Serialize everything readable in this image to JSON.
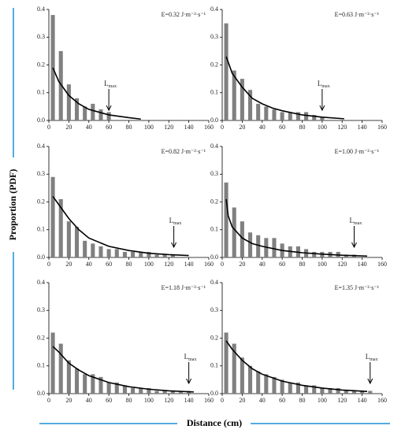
{
  "figure": {
    "ylabel": "Proportion (PDF)",
    "xlabel": "Distance (cm)"
  },
  "chart_data": [
    {
      "type": "bar",
      "annotation": "E=0.32 J·m⁻²·s⁻¹",
      "color": "#808080",
      "x": [
        4,
        12,
        20,
        28,
        36,
        44,
        52,
        60
      ],
      "values": [
        0.38,
        0.25,
        0.13,
        0.08,
        0.05,
        0.06,
        0.04,
        0.03
      ],
      "curve": {
        "type": "line",
        "color": "#000000",
        "x": [
          4,
          10,
          20,
          30,
          40,
          50,
          60,
          70,
          80,
          92
        ],
        "values": [
          0.19,
          0.14,
          0.09,
          0.06,
          0.04,
          0.03,
          0.02,
          0.015,
          0.01,
          0.005
        ]
      },
      "lmax": {
        "text": "L",
        "subscript": "max",
        "x": 60
      },
      "xlim": [
        0,
        160
      ],
      "ylim": [
        0,
        0.4
      ],
      "xticks": [
        0,
        20,
        40,
        60,
        80,
        100,
        120,
        140,
        160
      ],
      "yticks": [
        {
          "value": 0,
          "label": "0.0"
        },
        0.1,
        0.2,
        0.3,
        0.4
      ]
    },
    {
      "type": "bar",
      "annotation": "E=0.63 J·m⁻²·s⁻¹",
      "color": "#808080",
      "x": [
        4,
        12,
        20,
        28,
        36,
        44,
        52,
        60,
        68,
        76,
        84,
        92,
        100
      ],
      "values": [
        0.35,
        0.18,
        0.15,
        0.11,
        0.06,
        0.05,
        0.04,
        0.03,
        0.03,
        0.03,
        0.03,
        0.02,
        0.01
      ],
      "curve": {
        "type": "line",
        "color": "#000000",
        "x": [
          4,
          10,
          20,
          30,
          40,
          50,
          60,
          80,
          100,
          122
        ],
        "values": [
          0.23,
          0.17,
          0.12,
          0.08,
          0.06,
          0.045,
          0.035,
          0.02,
          0.012,
          0.006
        ]
      },
      "lmax": {
        "text": "L",
        "subscript": "max",
        "x": 100
      },
      "xlim": [
        0,
        160
      ],
      "ylim": [
        0,
        0.4
      ],
      "xticks": [
        0,
        20,
        40,
        60,
        80,
        100,
        120,
        140,
        160
      ],
      "yticks": [
        {
          "value": 0,
          "label": "0.0"
        },
        0.1,
        0.2,
        0.3,
        0.4
      ]
    },
    {
      "type": "bar",
      "annotation": "E=0.82 J·m⁻²·s⁻¹",
      "color": "#808080",
      "x": [
        4,
        12,
        20,
        28,
        36,
        44,
        52,
        60,
        68,
        76,
        84,
        92,
        100,
        108,
        116,
        124
      ],
      "values": [
        0.29,
        0.21,
        0.13,
        0.11,
        0.06,
        0.05,
        0.04,
        0.03,
        0.03,
        0.02,
        0.02,
        0.02,
        0.02,
        0.01,
        0.01,
        0.01
      ],
      "curve": {
        "type": "line",
        "color": "#000000",
        "x": [
          4,
          10,
          20,
          30,
          40,
          60,
          80,
          100,
          120,
          140
        ],
        "values": [
          0.22,
          0.19,
          0.14,
          0.1,
          0.07,
          0.04,
          0.025,
          0.015,
          0.01,
          0.007
        ]
      },
      "lmax": {
        "text": "L",
        "subscript": "max",
        "x": 125
      },
      "xlim": [
        0,
        160
      ],
      "ylim": [
        0,
        0.4
      ],
      "xticks": [
        0,
        20,
        40,
        60,
        80,
        100,
        120,
        140,
        160
      ],
      "yticks": [
        {
          "value": 0,
          "label": "0.0"
        },
        0.1,
        0.2,
        0.3,
        0.4
      ]
    },
    {
      "type": "bar",
      "annotation": "E=1.00 J·m⁻²·s⁻¹",
      "color": "#808080",
      "x": [
        4,
        12,
        20,
        28,
        36,
        44,
        52,
        60,
        68,
        76,
        84,
        92,
        100,
        108,
        116,
        124,
        132
      ],
      "values": [
        0.27,
        0.18,
        0.13,
        0.09,
        0.08,
        0.07,
        0.07,
        0.05,
        0.04,
        0.04,
        0.03,
        0.02,
        0.02,
        0.02,
        0.02,
        0.01,
        0.01
      ],
      "curve": {
        "type": "line",
        "color": "#000000",
        "x": [
          4,
          6,
          10,
          20,
          30,
          40,
          60,
          80,
          100,
          120,
          145
        ],
        "values": [
          0.21,
          0.15,
          0.11,
          0.07,
          0.05,
          0.04,
          0.025,
          0.017,
          0.012,
          0.008,
          0.005
        ]
      },
      "lmax": {
        "text": "L",
        "subscript": "max",
        "x": 132
      },
      "xlim": [
        0,
        160
      ],
      "ylim": [
        0,
        0.4
      ],
      "xticks": [
        0,
        20,
        40,
        60,
        80,
        100,
        120,
        140,
        160
      ],
      "yticks": [
        {
          "value": 0,
          "label": "0.0"
        },
        0.1,
        0.2,
        0.3,
        0.4
      ]
    },
    {
      "type": "bar",
      "annotation": "E=1.18 J·m⁻²·s⁻¹",
      "color": "#808080",
      "x": [
        4,
        12,
        20,
        28,
        36,
        44,
        52,
        60,
        68,
        76,
        84,
        92,
        100,
        108,
        116,
        124,
        132,
        140
      ],
      "values": [
        0.22,
        0.18,
        0.12,
        0.09,
        0.07,
        0.07,
        0.06,
        0.04,
        0.04,
        0.03,
        0.02,
        0.02,
        0.02,
        0.01,
        0.01,
        0.01,
        0.01,
        0.01
      ],
      "curve": {
        "type": "line",
        "color": "#000000",
        "x": [
          4,
          10,
          20,
          30,
          40,
          60,
          80,
          100,
          120,
          145
        ],
        "values": [
          0.17,
          0.15,
          0.11,
          0.085,
          0.065,
          0.04,
          0.025,
          0.016,
          0.01,
          0.006
        ]
      },
      "lmax": {
        "text": "L",
        "subscript": "max",
        "x": 140
      },
      "xlim": [
        0,
        160
      ],
      "ylim": [
        0,
        0.4
      ],
      "xticks": [
        0,
        20,
        40,
        60,
        80,
        100,
        120,
        140,
        160
      ],
      "yticks": [
        {
          "value": 0,
          "label": "0.0"
        },
        0.1,
        0.2,
        0.3,
        0.4
      ]
    },
    {
      "type": "bar",
      "annotation": "E=1.35 J·m⁻²·s⁻¹",
      "color": "#808080",
      "x": [
        4,
        12,
        20,
        28,
        36,
        44,
        52,
        60,
        68,
        76,
        84,
        92,
        100,
        108,
        116,
        124,
        132,
        140,
        148
      ],
      "values": [
        0.22,
        0.18,
        0.13,
        0.1,
        0.08,
        0.07,
        0.06,
        0.05,
        0.04,
        0.04,
        0.03,
        0.03,
        0.02,
        0.02,
        0.02,
        0.01,
        0.01,
        0.01,
        0.01
      ],
      "curve": {
        "type": "line",
        "color": "#000000",
        "x": [
          4,
          10,
          20,
          30,
          40,
          60,
          80,
          100,
          120,
          145
        ],
        "values": [
          0.19,
          0.16,
          0.12,
          0.09,
          0.07,
          0.045,
          0.03,
          0.02,
          0.013,
          0.008
        ]
      },
      "lmax": {
        "text": "L",
        "subscript": "max",
        "x": 148
      },
      "xlim": [
        0,
        160
      ],
      "ylim": [
        0,
        0.4
      ],
      "xticks": [
        0,
        20,
        40,
        60,
        80,
        100,
        120,
        140,
        160
      ],
      "yticks": [
        {
          "value": 0,
          "label": "0.0"
        },
        0.1,
        0.2,
        0.3,
        0.4
      ]
    }
  ]
}
